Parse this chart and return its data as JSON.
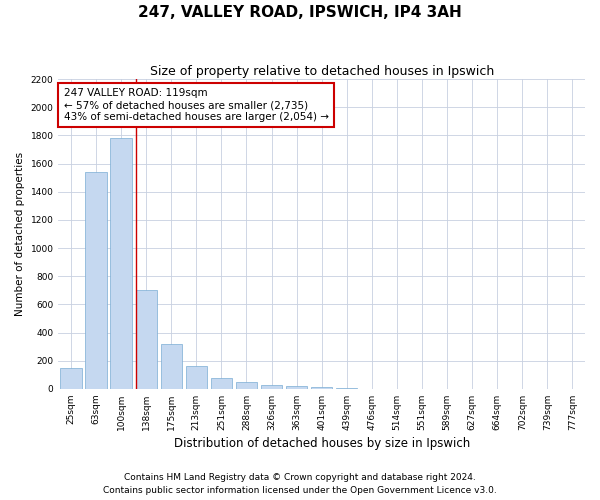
{
  "title1": "247, VALLEY ROAD, IPSWICH, IP4 3AH",
  "title2": "Size of property relative to detached houses in Ipswich",
  "xlabel": "Distribution of detached houses by size in Ipswich",
  "ylabel": "Number of detached properties",
  "categories": [
    "25sqm",
    "63sqm",
    "100sqm",
    "138sqm",
    "175sqm",
    "213sqm",
    "251sqm",
    "288sqm",
    "326sqm",
    "363sqm",
    "401sqm",
    "439sqm",
    "476sqm",
    "514sqm",
    "551sqm",
    "589sqm",
    "627sqm",
    "664sqm",
    "702sqm",
    "739sqm",
    "777sqm"
  ],
  "values": [
    150,
    1540,
    1780,
    700,
    320,
    160,
    80,
    45,
    25,
    20,
    10,
    5,
    2,
    1,
    1,
    0,
    0,
    0,
    0,
    0,
    0
  ],
  "bar_color": "#c5d8f0",
  "bar_edge_color": "#7aadd4",
  "grid_color": "#c8d0e0",
  "vline_color": "#cc0000",
  "annotation_line1": "247 VALLEY ROAD: 119sqm",
  "annotation_line2": "← 57% of detached houses are smaller (2,735)",
  "annotation_line3": "43% of semi-detached houses are larger (2,054) →",
  "annotation_box_color": "#ffffff",
  "annotation_box_edge": "#cc0000",
  "ylim_max": 2200,
  "yticks": [
    0,
    200,
    400,
    600,
    800,
    1000,
    1200,
    1400,
    1600,
    1800,
    2000,
    2200
  ],
  "footer1": "Contains HM Land Registry data © Crown copyright and database right 2024.",
  "footer2": "Contains public sector information licensed under the Open Government Licence v3.0.",
  "title1_fontsize": 11,
  "title2_fontsize": 9,
  "xlabel_fontsize": 8.5,
  "ylabel_fontsize": 7.5,
  "tick_fontsize": 6.5,
  "annot_fontsize": 7.5,
  "footer_fontsize": 6.5
}
